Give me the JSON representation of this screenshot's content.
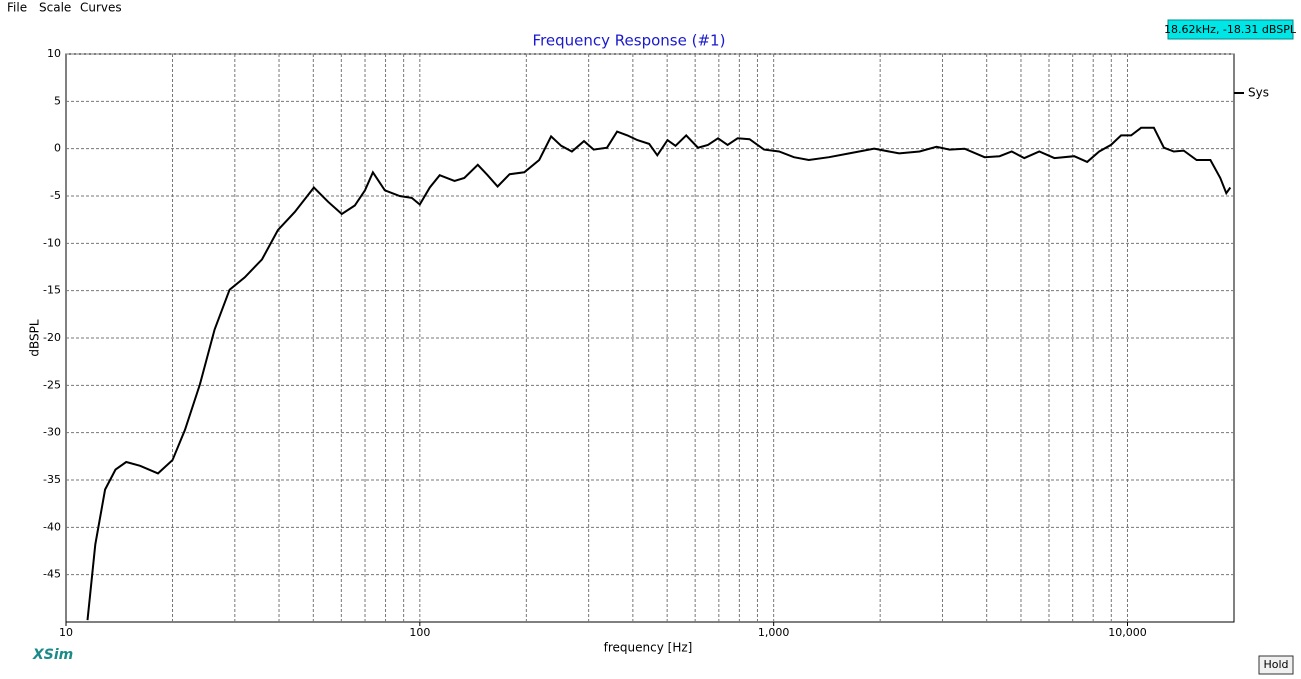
{
  "menu": [
    "File",
    "Scale",
    "Curves"
  ],
  "readout": "18.62kHz, -18.31 dBSPL",
  "logo": "XSim",
  "button": "Hold",
  "chart_data": {
    "type": "line",
    "title": "Frequency Response (#1)",
    "xlabel": "frequency [Hz]",
    "ylabel": "dBSPL",
    "xscale": "log",
    "grid": true,
    "legend": "right",
    "xlim": [
      10,
      20000
    ],
    "ylim": [
      -50,
      10
    ],
    "xticks": [
      10,
      100,
      {
        "value": 1000,
        "label": "1,000"
      },
      {
        "value": 10000,
        "label": "10,000"
      }
    ],
    "xgrid": [
      20,
      30,
      40,
      50,
      60,
      70,
      80,
      90,
      100,
      200,
      300,
      400,
      500,
      600,
      700,
      800,
      900,
      1000,
      2000,
      3000,
      4000,
      5000,
      6000,
      7000,
      8000,
      9000,
      10000
    ],
    "yticks": [
      10,
      5,
      0,
      -5,
      -10,
      -15,
      -20,
      -25,
      -30,
      -35,
      -40,
      -45
    ],
    "x": [
      11.5,
      12.1,
      12.9,
      13.8,
      14.8,
      16.2,
      18.2,
      20,
      21.7,
      23.9,
      26.3,
      29,
      32,
      35.8,
      39.7,
      44.3,
      50.2,
      55,
      60.2,
      65.5,
      70,
      73.7,
      79.6,
      87.7,
      94.9,
      100,
      106.7,
      113.8,
      125.3,
      133.6,
      145.8,
      155.4,
      165.9,
      179.3,
      197.4,
      217.4,
      235,
      251,
      269,
      291,
      310,
      338,
      361,
      386,
      412,
      445,
      469,
      501,
      528,
      566,
      611,
      652,
      696,
      741,
      791,
      855,
      940,
      1036,
      1141,
      1257,
      1434,
      1635,
      1924,
      2264,
      2583,
      2886,
      3140,
      3464,
      3945,
      4350,
      4706,
      5109,
      5634,
      6215,
      7068,
      7693,
      8318,
      8985,
      9595,
      10236,
      10925,
      11877,
      12670,
      13513,
      14418,
      15680,
      17150,
      18290,
      19020,
      19530
    ],
    "series": [
      {
        "name": "Sys",
        "color": "#000000",
        "values": [
          -49.8,
          -41.8,
          -36,
          -33.9,
          -33.1,
          -33.5,
          -34.3,
          -32.9,
          -29.7,
          -24.9,
          -19.1,
          -14.9,
          -13.6,
          -11.7,
          -8.6,
          -6.7,
          -4.1,
          -5.6,
          -6.9,
          -6,
          -4.4,
          -2.5,
          -4.4,
          -5,
          -5.2,
          -5.9,
          -4.1,
          -2.8,
          -3.4,
          -3.1,
          -1.7,
          -2.8,
          -4,
          -2.7,
          -2.5,
          -1.2,
          1.3,
          0.3,
          -0.3,
          0.8,
          -0.1,
          0.1,
          1.8,
          1.4,
          0.9,
          0.5,
          -0.7,
          0.9,
          0.3,
          1.4,
          0.1,
          0.4,
          1.1,
          0.4,
          1.1,
          1,
          -0.1,
          -0.3,
          -0.9,
          -1.2,
          -0.9,
          -0.5,
          0,
          -0.5,
          -0.3,
          0.2,
          -0.1,
          0,
          -0.9,
          -0.8,
          -0.3,
          -1,
          -0.3,
          -1,
          -0.8,
          -1.4,
          -0.3,
          0.4,
          1.4,
          1.4,
          2.2,
          2.2,
          0.1,
          -0.3,
          -0.2,
          -1.2,
          -1.2,
          -3.1,
          -4.7,
          -4.1
        ]
      }
    ]
  }
}
